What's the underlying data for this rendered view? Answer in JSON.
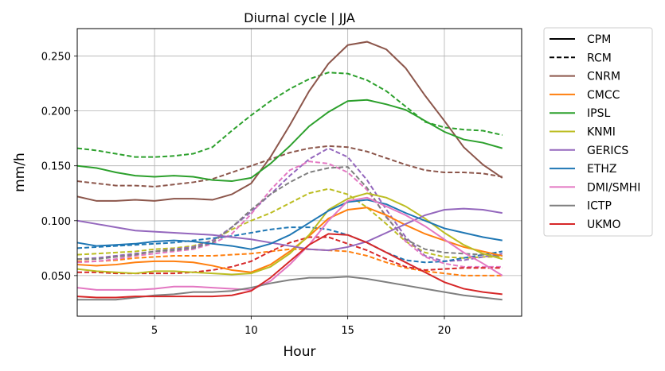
{
  "chart_data": {
    "type": "line",
    "title": "Diurnal cycle | JJA",
    "xlabel": "Hour",
    "ylabel": "mm/h",
    "xlim": [
      1,
      24
    ],
    "ylim": [
      0.013,
      0.275
    ],
    "xticks": [
      5,
      10,
      15,
      20
    ],
    "yticks": [
      0.05,
      0.1,
      0.15,
      0.2,
      0.25
    ],
    "ytick_labels": [
      "0.050",
      "0.100",
      "0.150",
      "0.200",
      "0.250"
    ],
    "grid": true,
    "legend_position": "outside-right",
    "legend_style_entries": [
      {
        "label": "CPM",
        "dash": "solid"
      },
      {
        "label": "RCM",
        "dash": "dashed"
      }
    ],
    "x": [
      1,
      2,
      3,
      4,
      5,
      6,
      7,
      8,
      9,
      10,
      11,
      12,
      13,
      14,
      15,
      16,
      17,
      18,
      19,
      20,
      21,
      22,
      23
    ],
    "series": [
      {
        "name": "CNRM",
        "color": "#8c564b",
        "cpm": [
          0.122,
          0.118,
          0.118,
          0.119,
          0.118,
          0.12,
          0.12,
          0.119,
          0.124,
          0.134,
          0.158,
          0.187,
          0.218,
          0.243,
          0.26,
          0.263,
          0.256,
          0.239,
          0.214,
          0.191,
          0.167,
          0.151,
          0.139
        ],
        "rcm": [
          0.136,
          0.134,
          0.132,
          0.132,
          0.131,
          0.133,
          0.135,
          0.138,
          0.144,
          0.15,
          0.156,
          0.162,
          0.166,
          0.168,
          0.167,
          0.163,
          0.157,
          0.151,
          0.146,
          0.144,
          0.144,
          0.143,
          0.14
        ]
      },
      {
        "name": "CMCC",
        "color": "#ff7f0e",
        "cpm": [
          0.06,
          0.059,
          0.06,
          0.062,
          0.063,
          0.063,
          0.062,
          0.059,
          0.055,
          0.053,
          0.06,
          0.072,
          0.086,
          0.102,
          0.11,
          0.112,
          0.105,
          0.096,
          0.088,
          0.082,
          0.076,
          0.072,
          0.068
        ],
        "rcm": [
          0.063,
          0.063,
          0.064,
          0.066,
          0.067,
          0.068,
          0.068,
          0.068,
          0.069,
          0.07,
          0.072,
          0.074,
          0.074,
          0.073,
          0.072,
          0.068,
          0.062,
          0.057,
          0.054,
          0.052,
          0.05,
          0.05,
          0.05
        ]
      },
      {
        "name": "IPSL",
        "color": "#2ca02c",
        "cpm": [
          0.15,
          0.148,
          0.144,
          0.141,
          0.14,
          0.141,
          0.14,
          0.137,
          0.136,
          0.139,
          0.152,
          0.168,
          0.186,
          0.199,
          0.209,
          0.21,
          0.206,
          0.201,
          0.191,
          0.181,
          0.174,
          0.171,
          0.166
        ],
        "rcm": [
          0.166,
          0.164,
          0.161,
          0.158,
          0.158,
          0.159,
          0.161,
          0.167,
          0.182,
          0.196,
          0.209,
          0.22,
          0.229,
          0.235,
          0.234,
          0.228,
          0.218,
          0.204,
          0.19,
          0.185,
          0.183,
          0.182,
          0.178
        ]
      },
      {
        "name": "KNMI",
        "color": "#bcbd22",
        "cpm": [
          0.056,
          0.054,
          0.053,
          0.052,
          0.054,
          0.054,
          0.053,
          0.052,
          0.051,
          0.052,
          0.058,
          0.07,
          0.087,
          0.11,
          0.12,
          0.125,
          0.121,
          0.113,
          0.102,
          0.089,
          0.078,
          0.07,
          0.065
        ],
        "rcm": [
          0.069,
          0.07,
          0.071,
          0.072,
          0.074,
          0.075,
          0.077,
          0.082,
          0.092,
          0.1,
          0.107,
          0.116,
          0.125,
          0.129,
          0.124,
          0.112,
          0.097,
          0.081,
          0.071,
          0.067,
          0.066,
          0.067,
          0.067
        ]
      },
      {
        "name": "GERICS",
        "color": "#9467bd",
        "cpm": [
          0.1,
          0.097,
          0.094,
          0.091,
          0.09,
          0.089,
          0.088,
          0.087,
          0.085,
          0.083,
          0.08,
          0.077,
          0.074,
          0.073,
          0.076,
          0.081,
          0.089,
          0.097,
          0.105,
          0.11,
          0.111,
          0.11,
          0.107
        ],
        "rcm": [
          0.065,
          0.066,
          0.068,
          0.07,
          0.072,
          0.074,
          0.076,
          0.082,
          0.094,
          0.108,
          0.124,
          0.141,
          0.156,
          0.166,
          0.158,
          0.137,
          0.11,
          0.085,
          0.068,
          0.063,
          0.064,
          0.067,
          0.07
        ]
      },
      {
        "name": "ETHZ",
        "color": "#1f77b4",
        "cpm": [
          0.08,
          0.077,
          0.078,
          0.079,
          0.081,
          0.082,
          0.081,
          0.079,
          0.077,
          0.074,
          0.079,
          0.087,
          0.098,
          0.109,
          0.117,
          0.119,
          0.115,
          0.107,
          0.1,
          0.093,
          0.089,
          0.085,
          0.082
        ],
        "rcm": [
          0.075,
          0.076,
          0.077,
          0.078,
          0.079,
          0.08,
          0.082,
          0.084,
          0.086,
          0.089,
          0.092,
          0.094,
          0.094,
          0.092,
          0.087,
          0.08,
          0.071,
          0.064,
          0.062,
          0.063,
          0.066,
          0.069,
          0.072
        ]
      },
      {
        "name": "DMI/SMHI",
        "color": "#e377c2",
        "cpm": [
          0.039,
          0.037,
          0.037,
          0.037,
          0.038,
          0.04,
          0.04,
          0.039,
          0.038,
          0.037,
          0.045,
          0.06,
          0.078,
          0.1,
          0.118,
          0.121,
          0.113,
          0.105,
          0.095,
          0.083,
          0.071,
          0.061,
          0.05
        ],
        "rcm": [
          0.062,
          0.063,
          0.065,
          0.068,
          0.07,
          0.072,
          0.074,
          0.079,
          0.088,
          0.106,
          0.128,
          0.146,
          0.154,
          0.152,
          0.144,
          0.128,
          0.104,
          0.081,
          0.067,
          0.061,
          0.058,
          0.058,
          0.058
        ]
      },
      {
        "name": "ICTP",
        "color": "#7f7f7f",
        "cpm": [
          0.028,
          0.028,
          0.028,
          0.03,
          0.032,
          0.033,
          0.035,
          0.035,
          0.036,
          0.039,
          0.043,
          0.046,
          0.048,
          0.048,
          0.049,
          0.047,
          0.044,
          0.041,
          0.038,
          0.035,
          0.032,
          0.03,
          0.028
        ],
        "rcm": [
          0.065,
          0.065,
          0.067,
          0.069,
          0.072,
          0.073,
          0.075,
          0.08,
          0.094,
          0.11,
          0.124,
          0.135,
          0.144,
          0.148,
          0.149,
          0.13,
          0.103,
          0.083,
          0.074,
          0.071,
          0.07,
          0.069,
          0.068
        ]
      },
      {
        "name": "UKMO",
        "color": "#d62728",
        "cpm": [
          0.031,
          0.03,
          0.03,
          0.031,
          0.031,
          0.031,
          0.031,
          0.031,
          0.032,
          0.036,
          0.048,
          0.063,
          0.078,
          0.088,
          0.087,
          0.08,
          0.071,
          0.062,
          0.053,
          0.044,
          0.038,
          0.035,
          0.033
        ],
        "rcm": [
          0.053,
          0.053,
          0.052,
          0.052,
          0.052,
          0.052,
          0.053,
          0.055,
          0.058,
          0.063,
          0.072,
          0.08,
          0.085,
          0.085,
          0.079,
          0.073,
          0.065,
          0.058,
          0.055,
          0.056,
          0.057,
          0.057,
          0.057
        ]
      }
    ]
  }
}
